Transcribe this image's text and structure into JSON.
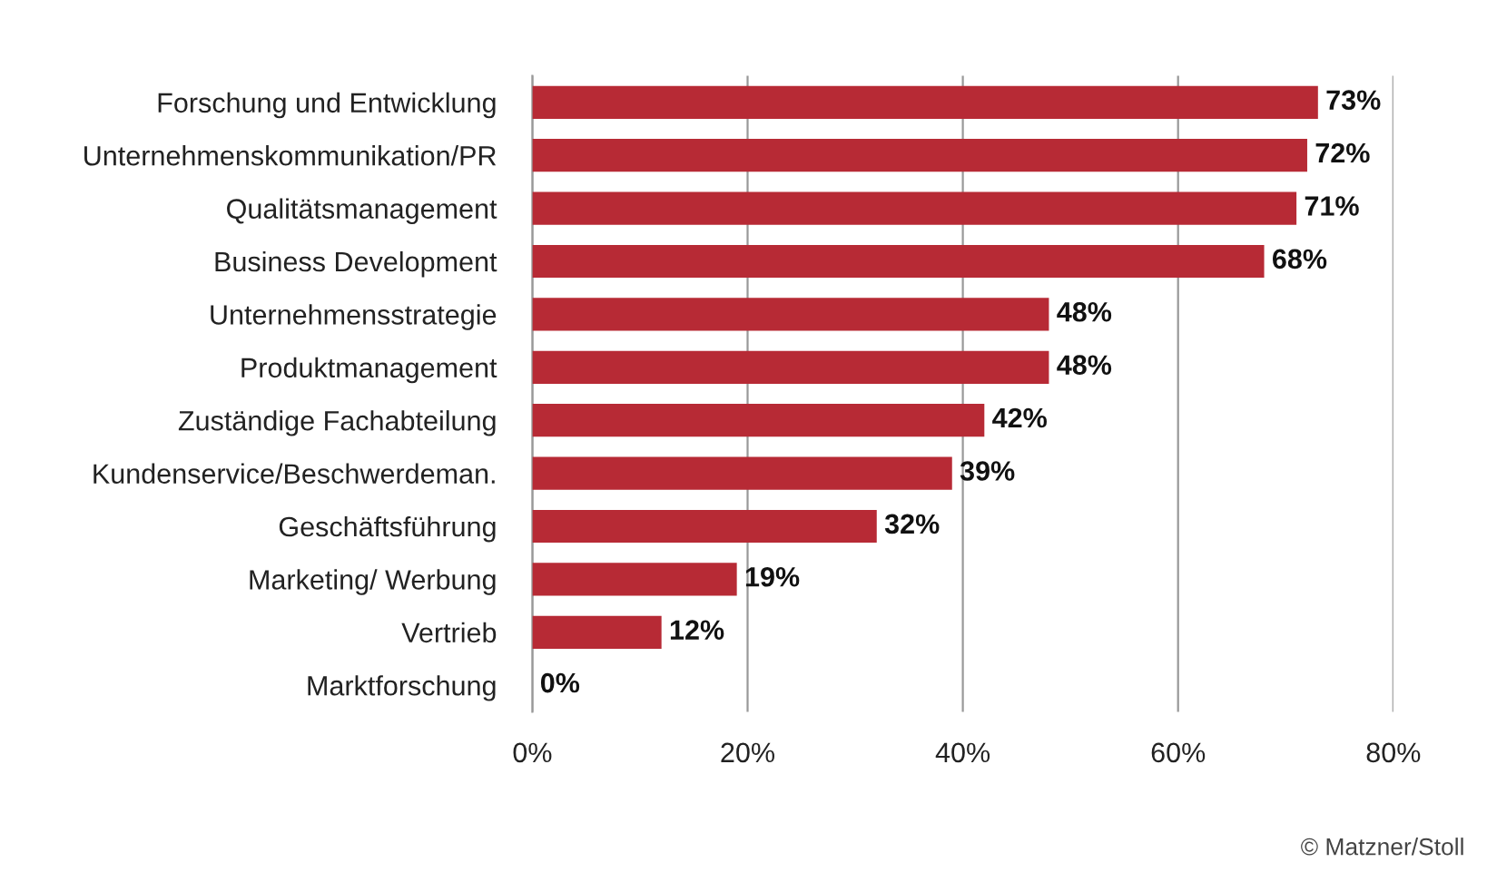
{
  "chart_data": {
    "type": "bar",
    "orientation": "horizontal",
    "categories": [
      "Forschung und Entwicklung",
      "Unternehmenskommunikation/PR",
      "Qualitätsmanagement",
      "Business Development",
      "Unternehmensstrategie",
      "Produktmanagement",
      "Zuständige Fachabteilung",
      "Kundenservice/Beschwerdeman.",
      "Geschäftsführung",
      "Marketing/ Werbung",
      "Vertrieb",
      "Marktforschung"
    ],
    "values": [
      73,
      72,
      71,
      68,
      48,
      48,
      42,
      39,
      32,
      19,
      12,
      0
    ],
    "value_labels": [
      "73%",
      "72%",
      "71%",
      "68%",
      "48%",
      "48%",
      "42%",
      "39%",
      "32%",
      "19%",
      "12%",
      "0%"
    ],
    "color": "#b72a35",
    "xlim": [
      0,
      80
    ],
    "xticks": [
      {
        "value": 0,
        "label": "0%"
      },
      {
        "value": 20,
        "label": "20%"
      },
      {
        "value": 40,
        "label": "40%"
      },
      {
        "value": 60,
        "label": "60%"
      },
      {
        "value": 80,
        "label": "80%"
      }
    ],
    "grid": "x",
    "annotations": [
      "© Matzner/Stoll"
    ]
  }
}
